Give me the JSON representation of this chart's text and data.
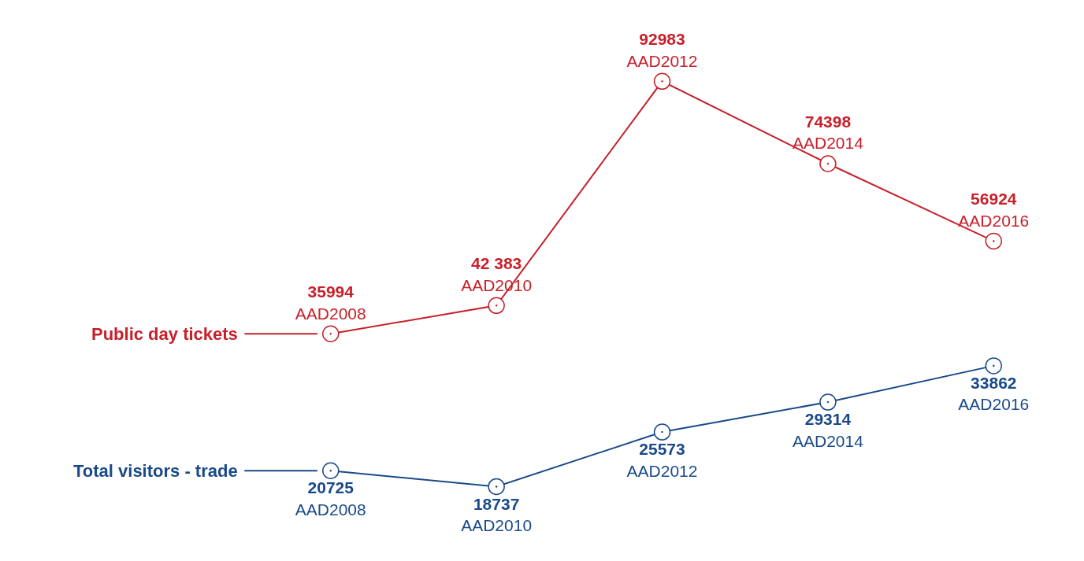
{
  "chart_data": [
    {
      "type": "line",
      "categories": [
        "AAD2008",
        "AAD2010",
        "AAD2012",
        "AAD2014",
        "AAD2016"
      ],
      "series": [
        {
          "name": "Public day tickets",
          "color": "#c8202a",
          "values": [
            35994,
            42383,
            92983,
            74398,
            56924
          ],
          "value_labels": [
            "35994",
            "42 383",
            "92983",
            "74398",
            "56924"
          ]
        }
      ],
      "marker": "circle",
      "legend": "left",
      "tick_labels": false
    },
    {
      "type": "line",
      "categories": [
        "AAD2008",
        "AAD2010",
        "AAD2012",
        "AAD2014",
        "AAD2016"
      ],
      "series": [
        {
          "name": "Total visitors - trade",
          "color": "#1a4a8a",
          "values": [
            20725,
            18737,
            25573,
            29314,
            33862
          ],
          "value_labels": [
            "20725",
            "18737",
            "25573",
            "29314",
            "33862"
          ]
        }
      ],
      "marker": "circle",
      "legend": "left",
      "tick_labels": false
    }
  ]
}
